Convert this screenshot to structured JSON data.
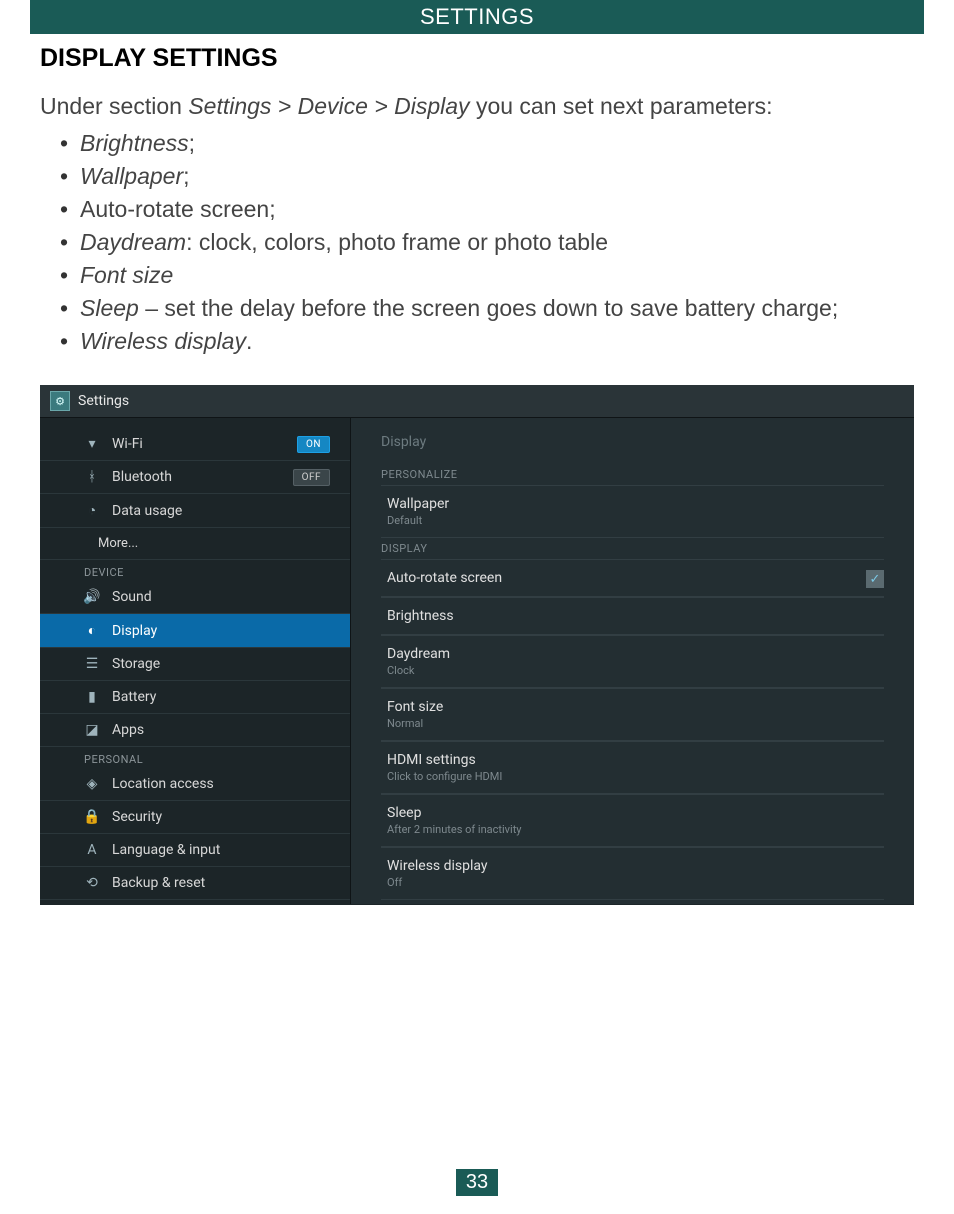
{
  "colors": {
    "header_bg": "#1a5b56",
    "header_fg": "#ffffff",
    "body_text": "#444444",
    "screenshot_bg": "#1c2528",
    "screenshot_right_bg": "#232e32",
    "active_row_bg": "#0a6aa8",
    "toggle_on_bg": "#1587c3",
    "toggle_off_bg": "#3a4549",
    "muted_text": "#7e898e"
  },
  "header_bar": "SETTINGS",
  "section_heading": "DISPLAY SETTINGS",
  "intro": {
    "prefix": "Under section ",
    "breadcrumb": "Settings > Device > Display",
    "suffix": " you can set next parameters:"
  },
  "bullets": {
    "b0": "Brightness",
    "b1": "Wallpaper",
    "b2_plain": "Auto-rotate screen;",
    "b3_label": "Daydream",
    "b3_rest": ": clock, colors, photo frame or photo table",
    "b4": "Font size",
    "b5_label": "Sleep",
    "b5_rest": " – set the delay before the screen goes down to save battery charge;",
    "b6_label": "Wireless display",
    "b6_rest": "."
  },
  "screenshot": {
    "title": "Settings",
    "left": {
      "wifi": "Wi-Fi",
      "wifi_toggle": "ON",
      "bluetooth": "Bluetooth",
      "bluetooth_toggle": "OFF",
      "data_usage": "Data usage",
      "more": "More...",
      "section_device": "DEVICE",
      "sound": "Sound",
      "display": "Display",
      "storage": "Storage",
      "battery": "Battery",
      "apps": "Apps",
      "section_personal": "PERSONAL",
      "location": "Location access",
      "security": "Security",
      "language": "Language & input",
      "backup": "Backup & reset"
    },
    "right": {
      "panel_title": "Display",
      "section_personalize": "PERSONALIZE",
      "wallpaper": "Wallpaper",
      "wallpaper_sub": "Default",
      "section_display": "DISPLAY",
      "auto_rotate": "Auto-rotate screen",
      "brightness": "Brightness",
      "daydream": "Daydream",
      "daydream_sub": "Clock",
      "font_size": "Font size",
      "font_size_sub": "Normal",
      "hdmi": "HDMI settings",
      "hdmi_sub": "Click to configure HDMI",
      "sleep": "Sleep",
      "sleep_sub": "After 2 minutes of inactivity",
      "wireless": "Wireless display",
      "wireless_sub": "Off"
    }
  },
  "page_number": "33"
}
